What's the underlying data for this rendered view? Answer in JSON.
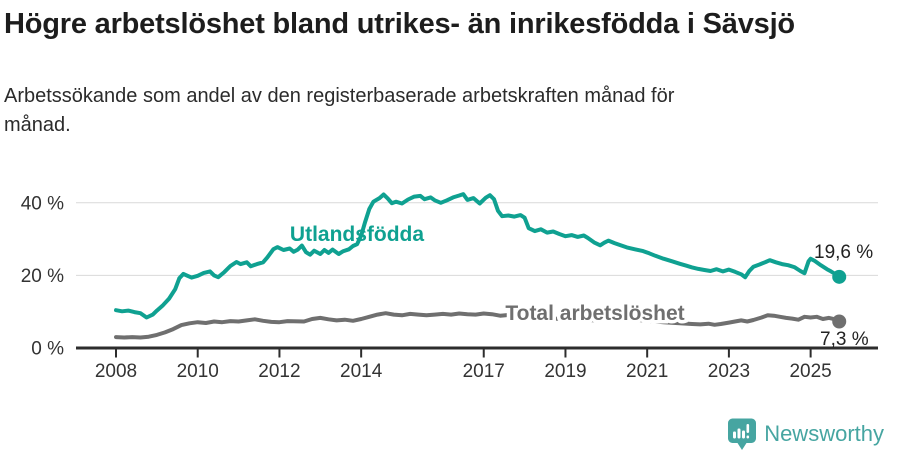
{
  "chart_data": {
    "type": "line",
    "title": "Högre arbetslöshet bland utrikes- än inrikesfödda i Sävsjö",
    "subtitle": "Arbetssökande som andel av den registerbaserade arbetskraften månad för månad.",
    "xlabel": "",
    "ylabel": "",
    "xlim": [
      2008,
      2025.7
    ],
    "ylim": [
      0,
      45
    ],
    "grid": "horizontal-only",
    "legend_position": "inline-labels-on-lines",
    "x_axis": {
      "ticks": [
        {
          "label": "2008",
          "year": 2008
        },
        {
          "label": "2010",
          "year": 2010
        },
        {
          "label": "2012",
          "year": 2012
        },
        {
          "label": "2014",
          "year": 2014
        },
        {
          "label": "2017",
          "year": 2017
        },
        {
          "label": "2019",
          "year": 2019
        },
        {
          "label": "2021",
          "year": 2021
        },
        {
          "label": "2023",
          "year": 2023
        },
        {
          "label": "2025",
          "year": 2025
        }
      ]
    },
    "y_axis": {
      "ticks": [
        {
          "label": "0 %",
          "value": 0
        },
        {
          "label": "20 %",
          "value": 20
        },
        {
          "label": "40 %",
          "value": 40
        }
      ]
    },
    "colors": {
      "axis": "#2d2d2d",
      "grid": "#d9d9d9",
      "tick_text": "#333333",
      "value_label_text": "#222222"
    },
    "series": [
      {
        "name": "Utlandsfödda",
        "color": "#0fa191",
        "end_label": "19,6 %",
        "last_value": 19.6,
        "points": [
          [
            2008.0,
            10.4
          ],
          [
            2008.15,
            10.1
          ],
          [
            2008.3,
            10.3
          ],
          [
            2008.45,
            9.9
          ],
          [
            2008.6,
            9.6
          ],
          [
            2008.75,
            8.4
          ],
          [
            2008.9,
            9.2
          ],
          [
            2009.0,
            10.3
          ],
          [
            2009.15,
            11.8
          ],
          [
            2009.3,
            13.6
          ],
          [
            2009.45,
            16.2
          ],
          [
            2009.55,
            19.2
          ],
          [
            2009.65,
            20.4
          ],
          [
            2009.75,
            19.9
          ],
          [
            2009.85,
            19.4
          ],
          [
            2010.0,
            19.9
          ],
          [
            2010.15,
            20.7
          ],
          [
            2010.3,
            21.1
          ],
          [
            2010.4,
            20.0
          ],
          [
            2010.5,
            19.5
          ],
          [
            2010.65,
            20.9
          ],
          [
            2010.8,
            22.6
          ],
          [
            2010.95,
            23.7
          ],
          [
            2011.05,
            23.1
          ],
          [
            2011.2,
            23.6
          ],
          [
            2011.3,
            22.5
          ],
          [
            2011.45,
            23.1
          ],
          [
            2011.6,
            23.6
          ],
          [
            2011.7,
            24.9
          ],
          [
            2011.85,
            27.2
          ],
          [
            2011.95,
            27.8
          ],
          [
            2012.1,
            27.0
          ],
          [
            2012.25,
            27.4
          ],
          [
            2012.35,
            26.5
          ],
          [
            2012.45,
            27.1
          ],
          [
            2012.55,
            28.2
          ],
          [
            2012.65,
            26.4
          ],
          [
            2012.75,
            25.7
          ],
          [
            2012.85,
            26.8
          ],
          [
            2013.0,
            25.9
          ],
          [
            2013.1,
            27.0
          ],
          [
            2013.2,
            26.2
          ],
          [
            2013.3,
            27.1
          ],
          [
            2013.45,
            25.9
          ],
          [
            2013.55,
            26.6
          ],
          [
            2013.7,
            27.2
          ],
          [
            2013.8,
            28.1
          ],
          [
            2013.9,
            28.6
          ],
          [
            2014.0,
            31.0
          ],
          [
            2014.1,
            34.8
          ],
          [
            2014.2,
            38.3
          ],
          [
            2014.3,
            40.3
          ],
          [
            2014.45,
            41.3
          ],
          [
            2014.55,
            42.3
          ],
          [
            2014.65,
            41.2
          ],
          [
            2014.75,
            39.9
          ],
          [
            2014.85,
            40.3
          ],
          [
            2015.0,
            39.8
          ],
          [
            2015.15,
            40.9
          ],
          [
            2015.3,
            41.7
          ],
          [
            2015.45,
            41.9
          ],
          [
            2015.55,
            41.0
          ],
          [
            2015.7,
            41.5
          ],
          [
            2015.8,
            40.7
          ],
          [
            2015.95,
            40.0
          ],
          [
            2016.1,
            40.7
          ],
          [
            2016.25,
            41.5
          ],
          [
            2016.4,
            42.0
          ],
          [
            2016.5,
            42.4
          ],
          [
            2016.6,
            40.8
          ],
          [
            2016.75,
            41.3
          ],
          [
            2016.9,
            39.8
          ],
          [
            2017.05,
            41.4
          ],
          [
            2017.15,
            42.1
          ],
          [
            2017.25,
            41.0
          ],
          [
            2017.35,
            37.8
          ],
          [
            2017.45,
            36.3
          ],
          [
            2017.6,
            36.5
          ],
          [
            2017.75,
            36.2
          ],
          [
            2017.9,
            36.6
          ],
          [
            2018.0,
            35.9
          ],
          [
            2018.1,
            33.0
          ],
          [
            2018.25,
            32.2
          ],
          [
            2018.4,
            32.7
          ],
          [
            2018.55,
            31.8
          ],
          [
            2018.7,
            32.1
          ],
          [
            2018.85,
            31.4
          ],
          [
            2019.0,
            30.8
          ],
          [
            2019.15,
            31.1
          ],
          [
            2019.3,
            30.6
          ],
          [
            2019.45,
            31.0
          ],
          [
            2019.55,
            30.3
          ],
          [
            2019.7,
            29.1
          ],
          [
            2019.85,
            28.3
          ],
          [
            2019.95,
            29.0
          ],
          [
            2020.05,
            29.6
          ],
          [
            2020.2,
            28.9
          ],
          [
            2020.35,
            28.3
          ],
          [
            2020.5,
            27.7
          ],
          [
            2020.7,
            27.2
          ],
          [
            2020.9,
            26.7
          ],
          [
            2021.05,
            26.1
          ],
          [
            2021.2,
            25.4
          ],
          [
            2021.4,
            24.6
          ],
          [
            2021.6,
            23.9
          ],
          [
            2021.8,
            23.2
          ],
          [
            2021.95,
            22.7
          ],
          [
            2022.1,
            22.2
          ],
          [
            2022.25,
            21.8
          ],
          [
            2022.4,
            21.5
          ],
          [
            2022.55,
            21.2
          ],
          [
            2022.7,
            21.7
          ],
          [
            2022.85,
            21.1
          ],
          [
            2023.0,
            21.6
          ],
          [
            2023.15,
            21.0
          ],
          [
            2023.3,
            20.3
          ],
          [
            2023.4,
            19.5
          ],
          [
            2023.5,
            21.2
          ],
          [
            2023.6,
            22.4
          ],
          [
            2023.75,
            23.0
          ],
          [
            2023.9,
            23.7
          ],
          [
            2024.0,
            24.2
          ],
          [
            2024.15,
            23.6
          ],
          [
            2024.3,
            23.1
          ],
          [
            2024.45,
            22.8
          ],
          [
            2024.6,
            22.3
          ],
          [
            2024.75,
            21.2
          ],
          [
            2024.85,
            20.6
          ],
          [
            2024.95,
            23.9
          ],
          [
            2025.0,
            24.6
          ],
          [
            2025.1,
            24.0
          ],
          [
            2025.25,
            22.8
          ],
          [
            2025.4,
            21.7
          ],
          [
            2025.5,
            21.1
          ],
          [
            2025.6,
            20.4
          ],
          [
            2025.7,
            19.6
          ]
        ]
      },
      {
        "name": "Total arbetslöshet",
        "color": "#6f6f6f",
        "end_label": "7,3 %",
        "last_value": 7.3,
        "points": [
          [
            2008.0,
            3.0
          ],
          [
            2008.2,
            2.9
          ],
          [
            2008.4,
            3.0
          ],
          [
            2008.6,
            2.9
          ],
          [
            2008.8,
            3.1
          ],
          [
            2009.0,
            3.6
          ],
          [
            2009.2,
            4.3
          ],
          [
            2009.4,
            5.2
          ],
          [
            2009.6,
            6.3
          ],
          [
            2009.8,
            6.8
          ],
          [
            2010.0,
            7.1
          ],
          [
            2010.2,
            6.9
          ],
          [
            2010.4,
            7.3
          ],
          [
            2010.6,
            7.1
          ],
          [
            2010.8,
            7.4
          ],
          [
            2011.0,
            7.3
          ],
          [
            2011.2,
            7.6
          ],
          [
            2011.4,
            7.9
          ],
          [
            2011.6,
            7.5
          ],
          [
            2011.8,
            7.2
          ],
          [
            2012.0,
            7.1
          ],
          [
            2012.2,
            7.4
          ],
          [
            2012.6,
            7.3
          ],
          [
            2012.8,
            8.0
          ],
          [
            2013.0,
            8.3
          ],
          [
            2013.2,
            7.9
          ],
          [
            2013.4,
            7.6
          ],
          [
            2013.6,
            7.8
          ],
          [
            2013.8,
            7.5
          ],
          [
            2014.0,
            8.0
          ],
          [
            2014.2,
            8.6
          ],
          [
            2014.4,
            9.2
          ],
          [
            2014.6,
            9.6
          ],
          [
            2014.8,
            9.2
          ],
          [
            2015.0,
            9.0
          ],
          [
            2015.2,
            9.4
          ],
          [
            2015.4,
            9.2
          ],
          [
            2015.6,
            9.0
          ],
          [
            2015.8,
            9.2
          ],
          [
            2016.0,
            9.4
          ],
          [
            2016.2,
            9.2
          ],
          [
            2016.4,
            9.5
          ],
          [
            2016.6,
            9.3
          ],
          [
            2016.8,
            9.2
          ],
          [
            2017.0,
            9.5
          ],
          [
            2017.2,
            9.3
          ],
          [
            2017.4,
            8.9
          ],
          [
            2017.6,
            9.1
          ],
          [
            2017.8,
            8.8
          ],
          [
            2018.0,
            8.6
          ],
          [
            2018.3,
            8.4
          ],
          [
            2018.6,
            8.2
          ],
          [
            2019.0,
            7.9
          ],
          [
            2019.4,
            7.7
          ],
          [
            2019.8,
            7.6
          ],
          [
            2020.0,
            8.0
          ],
          [
            2020.3,
            8.2
          ],
          [
            2020.6,
            7.9
          ],
          [
            2021.0,
            7.5
          ],
          [
            2021.4,
            7.1
          ],
          [
            2021.8,
            6.8
          ],
          [
            2022.1,
            6.6
          ],
          [
            2022.3,
            6.5
          ],
          [
            2022.5,
            6.7
          ],
          [
            2022.65,
            6.4
          ],
          [
            2022.8,
            6.6
          ],
          [
            2023.0,
            7.0
          ],
          [
            2023.15,
            7.3
          ],
          [
            2023.3,
            7.6
          ],
          [
            2023.45,
            7.3
          ],
          [
            2023.6,
            7.7
          ],
          [
            2023.8,
            8.4
          ],
          [
            2023.95,
            9.0
          ],
          [
            2024.1,
            8.9
          ],
          [
            2024.25,
            8.6
          ],
          [
            2024.4,
            8.3
          ],
          [
            2024.55,
            8.1
          ],
          [
            2024.7,
            7.8
          ],
          [
            2024.85,
            8.6
          ],
          [
            2025.0,
            8.4
          ],
          [
            2025.15,
            8.6
          ],
          [
            2025.3,
            8.0
          ],
          [
            2025.45,
            8.3
          ],
          [
            2025.6,
            7.9
          ],
          [
            2025.7,
            7.3
          ]
        ]
      }
    ]
  },
  "footer": {
    "brand": "Newsworthy",
    "logo_icon": "newsworthy-speech-bubble-bar-chart-icon",
    "brand_color": "#46a5a1"
  }
}
